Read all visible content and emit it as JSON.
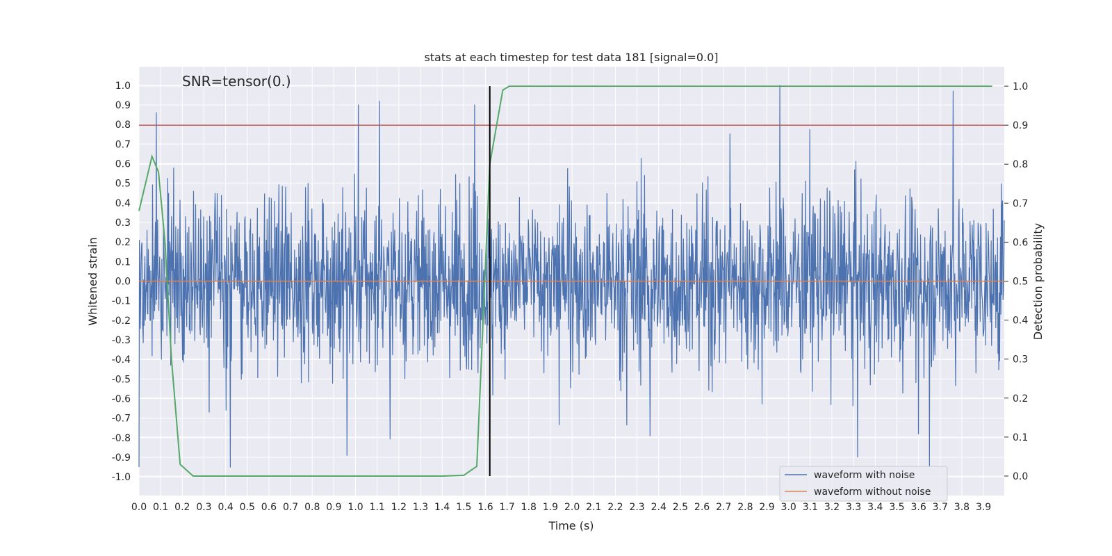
{
  "chart_data": {
    "type": "line",
    "title": "stats at each timestep for test data 181 [signal=0.0]",
    "annotation": "SNR=tensor(0.)",
    "xlabel": "Time (s)",
    "ylabel": "Whitened strain",
    "y2label": "Detection probability",
    "xlim": [
      0.0,
      3.996
    ],
    "ylim": [
      -1.095,
      1.095
    ],
    "y2lim": [
      -0.05,
      1.05
    ],
    "x_ticks": [
      "0.0",
      "0.1",
      "0.2",
      "0.3",
      "0.4",
      "0.5",
      "0.6",
      "0.7",
      "0.8",
      "0.9",
      "1.0",
      "1.1",
      "1.2",
      "1.3",
      "1.4",
      "1.5",
      "1.6",
      "1.7",
      "1.8",
      "1.9",
      "2.0",
      "2.1",
      "2.2",
      "2.3",
      "2.4",
      "2.5",
      "2.6",
      "2.7",
      "2.8",
      "2.9",
      "3.0",
      "3.1",
      "3.2",
      "3.3",
      "3.4",
      "3.5",
      "3.6",
      "3.7",
      "3.8",
      "3.9"
    ],
    "y_ticks": [
      "1.0",
      "0.9",
      "0.8",
      "0.7",
      "0.6",
      "0.5",
      "0.4",
      "0.3",
      "0.2",
      "0.1",
      "0.0",
      "-0.1",
      "-0.2",
      "-0.3",
      "-0.4",
      "-0.5",
      "-0.6",
      "-0.7",
      "-0.8",
      "-0.9",
      "-1.0"
    ],
    "y2_ticks": [
      "1.0",
      "0.9",
      "0.8",
      "0.7",
      "0.6",
      "0.5",
      "0.4",
      "0.3",
      "0.2",
      "0.1",
      "0.0"
    ],
    "grid": true,
    "legend_position": "lower-right",
    "series": [
      {
        "name": "waveform with noise",
        "axis": "left",
        "color": "#4c72b0",
        "kind": "noise",
        "amplitude_range": [
          -0.95,
          1.0
        ],
        "notable_peaks": [
          [
            0.08,
            0.86
          ],
          [
            1.11,
            0.92
          ],
          [
            2.96,
            1.0
          ],
          [
            3.76,
            0.97
          ]
        ],
        "notable_troughs": [
          [
            0.0,
            -0.95
          ],
          [
            0.96,
            -0.89
          ],
          [
            2.36,
            -0.79
          ],
          [
            3.6,
            -0.78
          ]
        ]
      },
      {
        "name": "waveform without noise",
        "axis": "left",
        "color": "#dd8452",
        "x": [
          0.0,
          3.996
        ],
        "y": [
          0.0,
          0.0
        ]
      },
      {
        "axis": "right",
        "color": "#55a868",
        "x": [
          0.0,
          0.06,
          0.09,
          0.12,
          0.15,
          0.19,
          0.25,
          1.4,
          1.5,
          1.56,
          1.62,
          1.68,
          1.71,
          3.94
        ],
        "y": [
          0.68,
          0.82,
          0.78,
          0.6,
          0.3,
          0.03,
          0.0,
          0.0,
          0.002,
          0.025,
          0.8,
          0.99,
          1.0,
          1.0
        ]
      }
    ],
    "threshold": {
      "axis": "right",
      "value": 0.9,
      "color": "#c44e52"
    },
    "vline": {
      "x": 1.62,
      "color": "#000000"
    },
    "noise_seed": 181
  }
}
